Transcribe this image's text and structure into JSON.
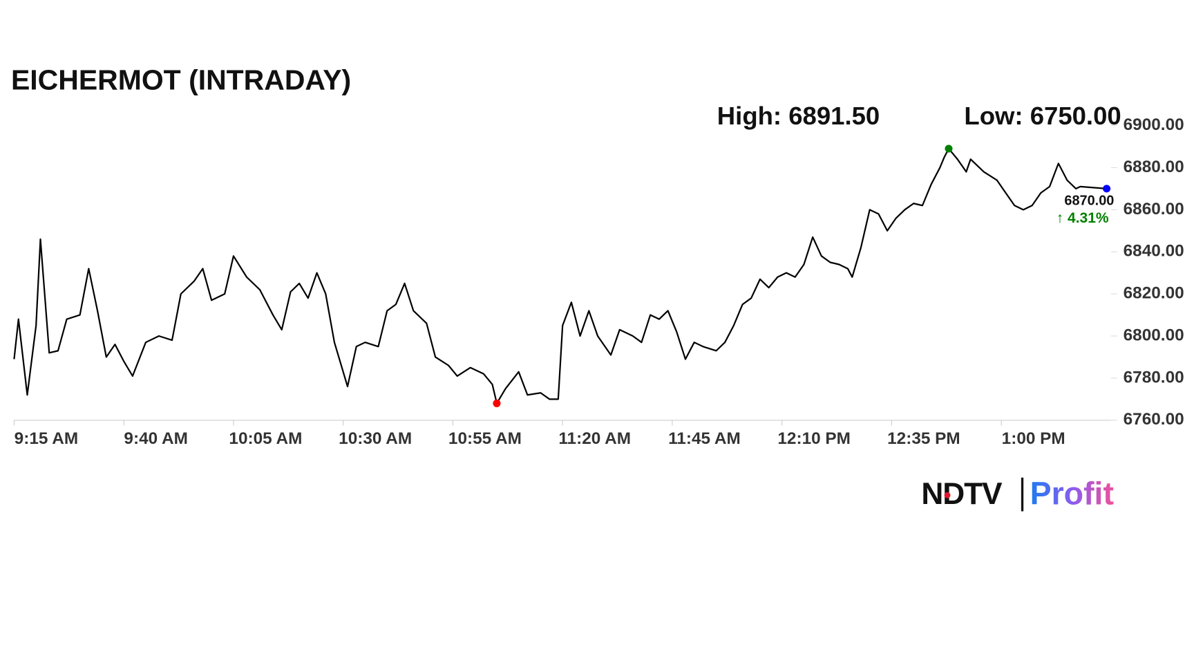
{
  "chart_data": {
    "type": "line",
    "title": "EICHERMOT (INTRADAY)",
    "high_label": "High: 6891.50",
    "low_label": "Low: 6750.00",
    "last_label": "6870.00",
    "change_label": "↑ 4.31%",
    "change_color": "#008000",
    "high_marker_color": "#008000",
    "low_marker_color": "#ff0000",
    "last_marker_color": "#0000ff",
    "brand": "NDTV",
    "brand_sub": "Profit",
    "xlim": [
      "9:15 AM",
      "1:25 PM"
    ],
    "xticks": [
      "9:15 AM",
      "9:40 AM",
      "10:05 AM",
      "10:30 AM",
      "10:55 AM",
      "11:20 AM",
      "11:45 AM",
      "12:10 PM",
      "12:35 PM",
      "1:00 PM"
    ],
    "ylim": [
      6760,
      6900
    ],
    "yticks": [
      {
        "value": 6760,
        "label": "6760.00"
      },
      {
        "value": 6780,
        "label": "6780.00"
      },
      {
        "value": 6800,
        "label": "6800.00"
      },
      {
        "value": 6820,
        "label": "6820.00"
      },
      {
        "value": 6840,
        "label": "6840.00"
      },
      {
        "value": 6860,
        "label": "6860.00"
      },
      {
        "value": 6880,
        "label": "6880.00"
      },
      {
        "value": 6900,
        "label": "6900.00"
      }
    ],
    "x": [
      "9:15 AM",
      "9:16 AM",
      "9:18 AM",
      "9:20 AM",
      "9:21 AM",
      "9:23 AM",
      "9:25 AM",
      "9:27 AM",
      "9:30 AM",
      "9:32 AM",
      "9:34 AM",
      "9:36 AM",
      "9:38 AM",
      "9:40 AM",
      "9:42 AM",
      "9:45 AM",
      "9:48 AM",
      "9:51 AM",
      "9:53 AM",
      "9:56 AM",
      "9:58 AM",
      "10:00 AM",
      "10:03 AM",
      "10:05 AM",
      "10:08 AM",
      "10:11 AM",
      "10:14 AM",
      "10:16 AM",
      "10:18 AM",
      "10:20 AM",
      "10:22 AM",
      "10:24 AM",
      "10:26 AM",
      "10:28 AM",
      "10:31 AM",
      "10:33 AM",
      "10:35 AM",
      "10:38 AM",
      "10:40 AM",
      "10:42 AM",
      "10:44 AM",
      "10:46 AM",
      "10:49 AM",
      "10:51 AM",
      "10:54 AM",
      "10:56 AM",
      "10:59 AM",
      "11:02 AM",
      "11:04 AM",
      "11:05 AM",
      "11:07 AM",
      "11:10 AM",
      "11:12 AM",
      "11:15 AM",
      "11:17 AM",
      "11:19 AM",
      "11:20 AM",
      "11:22 AM",
      "11:24 AM",
      "11:26 AM",
      "11:28 AM",
      "11:31 AM",
      "11:33 AM",
      "11:36 AM",
      "11:38 AM",
      "11:40 AM",
      "11:42 AM",
      "11:44 AM",
      "11:46 AM",
      "11:48 AM",
      "11:50 AM",
      "11:52 AM",
      "11:55 AM",
      "11:57 AM",
      "11:59 AM",
      "12:01 PM",
      "12:03 PM",
      "12:05 PM",
      "12:07 PM",
      "12:09 PM",
      "12:11 PM",
      "12:13 PM",
      "12:15 PM",
      "12:17 PM",
      "12:19 PM",
      "12:21 PM",
      "12:23 PM",
      "12:25 PM",
      "12:26 PM",
      "12:28 PM",
      "12:30 PM",
      "12:32 PM",
      "12:34 PM",
      "12:36 PM",
      "12:38 PM",
      "12:40 PM",
      "12:42 PM",
      "12:44 PM",
      "12:46 PM",
      "12:47 PM",
      "12:48 PM",
      "12:50 PM",
      "12:52 PM",
      "12:53 PM",
      "12:56 PM",
      "12:59 PM",
      "1:01 PM",
      "1:03 PM",
      "1:05 PM",
      "1:07 PM",
      "1:09 PM",
      "1:11 PM",
      "1:13 PM",
      "1:15 PM",
      "1:17 PM",
      "1:18 PM",
      "1:24 PM"
    ],
    "series": [
      {
        "color": "#000000",
        "values": [
          6789,
          6808,
          6772,
          6805,
          6846,
          6792,
          6793,
          6808,
          6810,
          6832,
          6812,
          6790,
          6796,
          6788,
          6781,
          6797,
          6800,
          6798,
          6820,
          6826,
          6832,
          6817,
          6820,
          6838,
          6828,
          6822,
          6810,
          6803,
          6821,
          6825,
          6818,
          6830,
          6820,
          6797,
          6776,
          6795,
          6797,
          6795,
          6812,
          6815,
          6825,
          6812,
          6806,
          6790,
          6786,
          6781,
          6785,
          6782,
          6777,
          6768,
          6775,
          6783,
          6772,
          6773,
          6770,
          6770,
          6805,
          6816,
          6800,
          6812,
          6800,
          6791,
          6803,
          6800,
          6797,
          6810,
          6808,
          6812,
          6802,
          6789,
          6797,
          6795,
          6793,
          6797,
          6805,
          6815,
          6818,
          6827,
          6823,
          6828,
          6830,
          6828,
          6834,
          6847,
          6838,
          6835,
          6834,
          6832,
          6828,
          6842,
          6860,
          6858,
          6850,
          6856,
          6860,
          6863,
          6862,
          6872,
          6880,
          6885,
          6889,
          6884,
          6878,
          6884,
          6878,
          6874,
          6868,
          6862,
          6860,
          6862,
          6868,
          6871,
          6882,
          6874,
          6870,
          6871,
          6870
        ]
      }
    ]
  }
}
